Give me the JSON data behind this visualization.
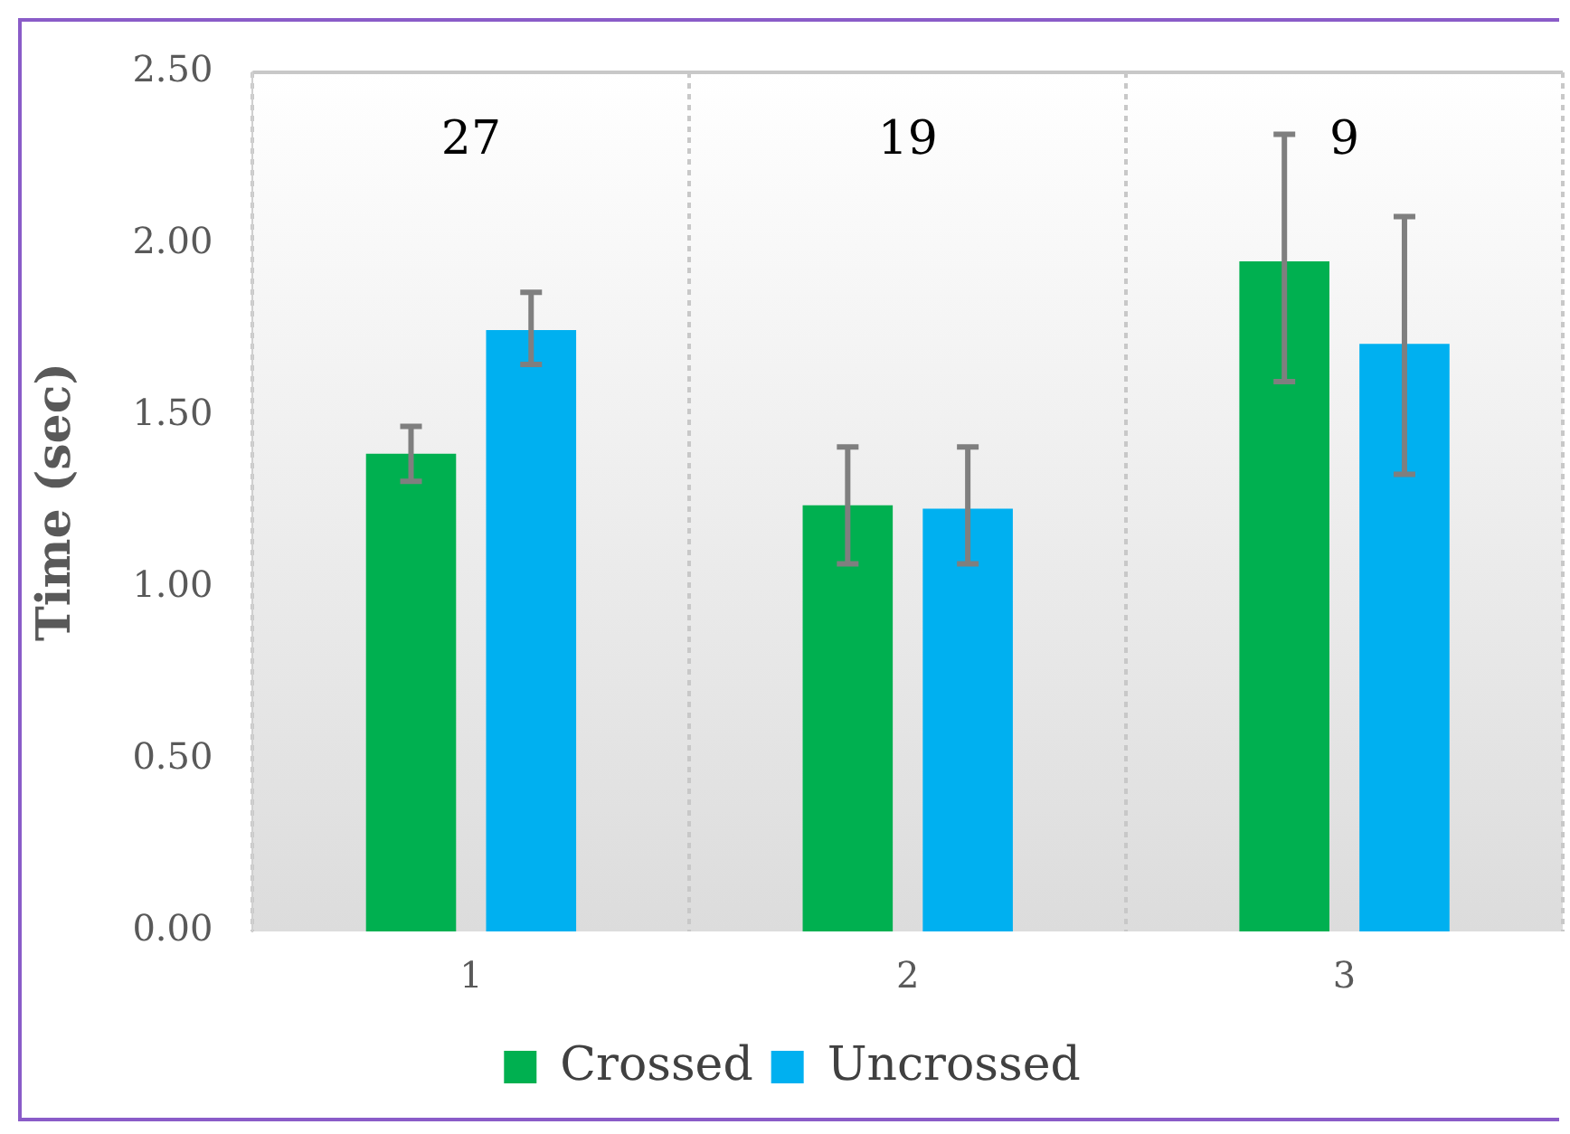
{
  "chart_data": {
    "type": "bar",
    "ylabel": "Time (sec)",
    "categories": [
      "1",
      "2",
      "3"
    ],
    "series": [
      {
        "name": "Crossed",
        "color": "#00b050",
        "values": [
          1.39,
          1.24,
          1.95
        ],
        "errors": [
          [
            1.31,
            1.47
          ],
          [
            1.07,
            1.41
          ],
          [
            1.6,
            2.32
          ]
        ]
      },
      {
        "name": "Uncrossed",
        "color": "#00b0f0",
        "values": [
          1.75,
          1.23,
          1.71
        ],
        "errors": [
          [
            1.65,
            1.86
          ],
          [
            1.07,
            1.41
          ],
          [
            1.33,
            2.08
          ]
        ]
      }
    ],
    "ylim": [
      0,
      2.5
    ],
    "yticks": [
      {
        "value": 0,
        "label": "0.00"
      },
      {
        "value": 0.5,
        "label": "0.50"
      },
      {
        "value": 1,
        "label": "1.00"
      },
      {
        "value": 1.5,
        "label": "1.50"
      },
      {
        "value": 2,
        "label": "2.00"
      },
      {
        "value": 2.5,
        "label": "2.50"
      }
    ],
    "grid": "x",
    "legend": "bottom",
    "annotations": [
      "27",
      "19",
      "9"
    ]
  }
}
